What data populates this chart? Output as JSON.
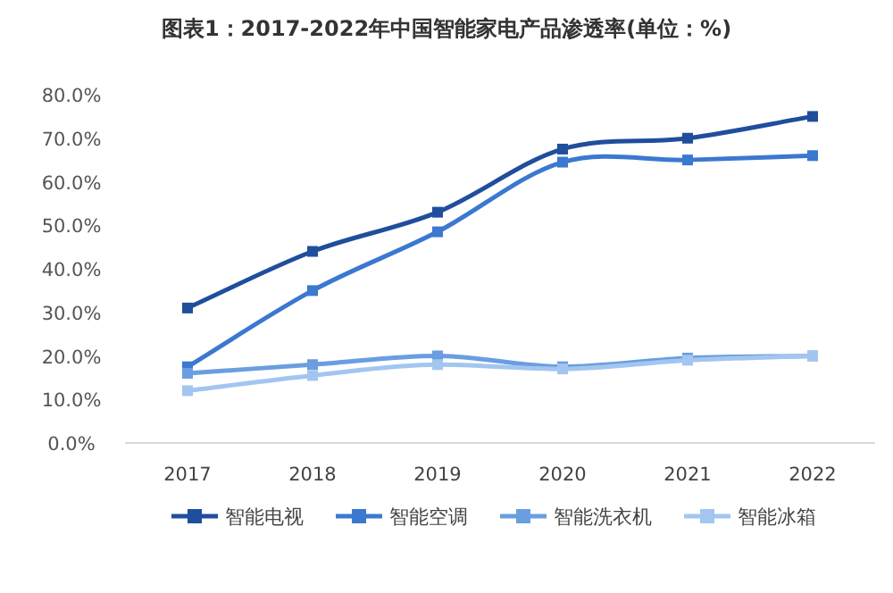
{
  "chart_data": {
    "type": "line",
    "title": "图表1：2017-2022年中国智能家电产品渗透率(单位：%)",
    "categories": [
      "2017",
      "2018",
      "2019",
      "2020",
      "2021",
      "2022"
    ],
    "series": [
      {
        "name": "智能电视",
        "color": "#1f4e9c",
        "values": [
          31,
          44,
          53,
          67.5,
          70,
          75
        ]
      },
      {
        "name": "智能空调",
        "color": "#3b78d0",
        "values": [
          17.5,
          35,
          48.5,
          64.5,
          65,
          66
        ]
      },
      {
        "name": "智能洗衣机",
        "color": "#6a9ee0",
        "values": [
          16,
          18,
          20,
          17.5,
          19.5,
          20
        ]
      },
      {
        "name": "智能冰箱",
        "color": "#a3c6f0",
        "values": [
          12,
          15.5,
          18,
          17,
          19,
          20
        ]
      }
    ],
    "ylim": [
      0,
      80
    ],
    "yticks": [
      {
        "value": 0,
        "label": "0.0%"
      },
      {
        "value": 10,
        "label": "10.0%"
      },
      {
        "value": 20,
        "label": "20.0%"
      },
      {
        "value": 30,
        "label": "30.0%"
      },
      {
        "value": 40,
        "label": "40.0%"
      },
      {
        "value": 50,
        "label": "50.0%"
      },
      {
        "value": 60,
        "label": "60.0%"
      },
      {
        "value": 70,
        "label": "70.0%"
      },
      {
        "value": 80,
        "label": "80.0%"
      }
    ],
    "marker": "square",
    "legend": "bottom"
  }
}
